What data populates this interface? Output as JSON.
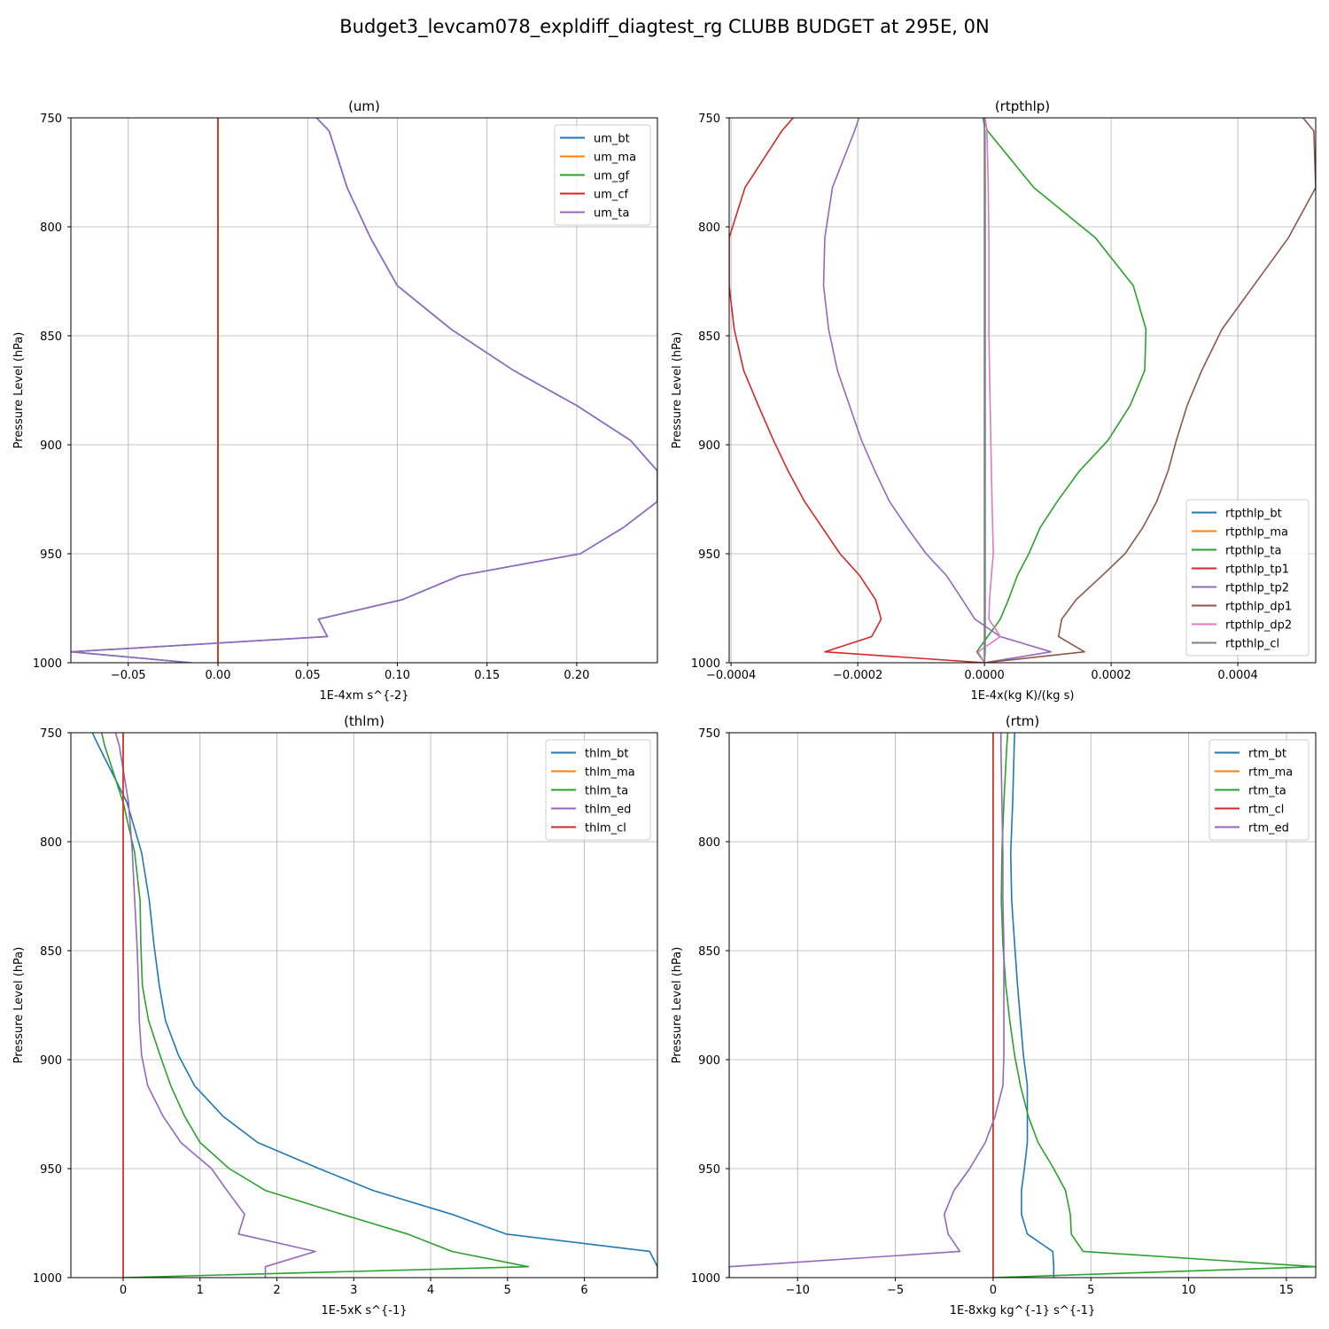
{
  "figure": {
    "suptitle": "Budget3_levcam078_expldiff_diagtest_rg CLUBB BUDGET at 295E, 0N"
  },
  "colors": {
    "c0": "#1f77b4",
    "c1": "#ff7f0e",
    "c2": "#2ca02c",
    "c3": "#d62728",
    "c4": "#9467bd",
    "c5": "#8c564b",
    "c6": "#e377c2",
    "c7": "#7f7f7f",
    "grid": "#b0b0b0"
  },
  "chart_data": [
    {
      "id": "um",
      "type": "line",
      "title": "(um)",
      "xlabel": "1E-4xm s^{-2}",
      "ylabel": "Pressure Level (hPa)",
      "xlim": [
        -0.082,
        0.245
      ],
      "ylim": [
        1000,
        750
      ],
      "xticks": [
        -0.05,
        0.0,
        0.05,
        0.1,
        0.15,
        0.2
      ],
      "xtick_labels": [
        "−0.05",
        "0.00",
        "0.05",
        "0.10",
        "0.15",
        "0.20"
      ],
      "yticks": [
        750,
        800,
        850,
        900,
        950,
        1000
      ],
      "ytick_labels": [
        "750",
        "800",
        "850",
        "900",
        "950",
        "1000"
      ],
      "grid": true,
      "legend": "top-right",
      "levels": [
        750,
        756,
        782,
        805,
        827,
        847,
        866,
        882,
        898,
        912,
        926,
        938,
        950,
        960,
        971,
        980,
        988,
        995,
        1000
      ],
      "series": [
        {
          "name": "um_bt",
          "color": "c0",
          "values": [
            0.055,
            0.062,
            0.072,
            0.085,
            0.1,
            0.13,
            0.165,
            0.2,
            0.23,
            0.245,
            0.245,
            0.226,
            0.202,
            0.135,
            0.103,
            0.056,
            0.061,
            -0.082,
            -0.015
          ]
        },
        {
          "name": "um_ma",
          "color": "c1",
          "values": [
            0,
            0,
            0,
            0,
            0,
            0,
            0,
            0,
            0,
            0,
            0,
            0,
            0,
            0,
            0,
            0,
            0,
            0,
            0
          ]
        },
        {
          "name": "um_gf",
          "color": "c2",
          "values": [
            0,
            0,
            0,
            0,
            0,
            0,
            0,
            0,
            0,
            0,
            0,
            0,
            0,
            0,
            0,
            0,
            0,
            0,
            0
          ]
        },
        {
          "name": "um_cf",
          "color": "c3",
          "values": [
            0,
            0,
            0,
            0,
            0,
            0,
            0,
            0,
            0,
            0,
            0,
            0,
            0,
            0,
            0,
            0,
            0,
            0,
            0
          ]
        },
        {
          "name": "um_ta",
          "color": "c4",
          "values": [
            0.055,
            0.062,
            0.072,
            0.085,
            0.1,
            0.13,
            0.165,
            0.2,
            0.23,
            0.245,
            0.245,
            0.226,
            0.202,
            0.135,
            0.103,
            0.056,
            0.061,
            -0.082,
            -0.015
          ]
        }
      ]
    },
    {
      "id": "rtpthlp",
      "type": "line",
      "title": "(rtpthlp)",
      "xlabel": "1E-4x(kg K)/(kg s)",
      "ylabel": "Pressure Level (hPa)",
      "xlim": [
        -0.000403,
        0.000523
      ],
      "ylim": [
        1000,
        750
      ],
      "xticks": [
        -0.0004,
        -0.0002,
        0.0,
        0.0002,
        0.0004
      ],
      "xtick_labels": [
        "−0.0004",
        "−0.0002",
        "0.0000",
        "0.0002",
        "0.0004"
      ],
      "yticks": [
        750,
        800,
        850,
        900,
        950,
        1000
      ],
      "ytick_labels": [
        "750",
        "800",
        "850",
        "900",
        "950",
        "1000"
      ],
      "grid": true,
      "legend": "bottom-right",
      "levels": [
        750,
        756,
        782,
        805,
        827,
        847,
        866,
        882,
        898,
        912,
        926,
        938,
        950,
        960,
        971,
        980,
        988,
        995,
        1000
      ],
      "series": [
        {
          "name": "rtpthlp_bt",
          "color": "c0",
          "values": [
            -2e-06,
            8e-07,
            1e-06,
            1e-06,
            1e-06,
            1e-06,
            1e-06,
            1e-06,
            1e-06,
            1e-06,
            1e-06,
            1e-06,
            1e-06,
            1e-06,
            1e-06,
            1e-06,
            1e-06,
            1e-06,
            0.0
          ]
        },
        {
          "name": "rtpthlp_ma",
          "color": "c1",
          "values": [
            0,
            0,
            0,
            0,
            0,
            0,
            0,
            0,
            0,
            0,
            0,
            0,
            0,
            0,
            0,
            0,
            0,
            0,
            0
          ]
        },
        {
          "name": "rtpthlp_ta",
          "color": "c2",
          "values": [
            -2e-06,
            5e-06,
            7.8e-05,
            0.000175,
            0.000235,
            0.000255,
            0.000253,
            0.00023,
            0.000195,
            0.00015,
            0.000115,
            8.8e-05,
            7e-05,
            5.2e-05,
            3.8e-05,
            2.5e-05,
            5e-06,
            -1.2e-05,
            0.0
          ]
        },
        {
          "name": "rtpthlp_tp1",
          "color": "c3",
          "values": [
            -0.000302,
            -0.00032,
            -0.000378,
            -0.000403,
            -0.000403,
            -0.000395,
            -0.00038,
            -0.000357,
            -0.000333,
            -0.00031,
            -0.000284,
            -0.000256,
            -0.000228,
            -0.000197,
            -0.000172,
            -0.000163,
            -0.000178,
            -0.000252,
            0.0
          ]
        },
        {
          "name": "rtpthlp_tp2",
          "color": "c4",
          "values": [
            -0.000198,
            -0.000205,
            -0.00024,
            -0.000252,
            -0.000254,
            -0.000246,
            -0.000232,
            -0.000213,
            -0.000194,
            -0.000173,
            -0.00015,
            -0.000122,
            -9.2e-05,
            -6e-05,
            -3.5e-05,
            -1.5e-05,
            2.5e-05,
            0.000105,
            0.0
          ]
        },
        {
          "name": "rtpthlp_dp1",
          "color": "c5",
          "values": [
            0.000503,
            0.00052,
            0.000523,
            0.00048,
            0.000425,
            0.000375,
            0.000343,
            0.00032,
            0.000303,
            0.00029,
            0.000272,
            0.00025,
            0.000222,
            0.000186,
            0.000145,
            0.000122,
            0.000117,
            0.000158,
            0.0
          ]
        },
        {
          "name": "rtpthlp_dp2",
          "color": "c6",
          "values": [
            1e-06,
            4e-06,
            6e-06,
            7e-06,
            7e-06,
            7e-06,
            8e-06,
            9e-06,
            1e-05,
            1.1e-05,
            1.2e-05,
            1.3e-05,
            1.4e-05,
            1.1e-05,
            8e-06,
            7e-06,
            2.5e-05,
            -1e-05,
            0.0
          ]
        },
        {
          "name": "rtpthlp_cl",
          "color": "c7",
          "values": [
            0,
            0,
            0,
            0,
            0,
            0,
            0,
            0,
            0,
            0,
            0,
            0,
            0,
            0,
            0,
            0,
            0,
            0,
            0
          ]
        }
      ]
    },
    {
      "id": "thlm",
      "type": "line",
      "title": "(thlm)",
      "xlabel": "1E-5xK s^{-1}",
      "ylabel": "Pressure Level (hPa)",
      "xlim": [
        -0.68,
        6.95
      ],
      "ylim": [
        1000,
        750
      ],
      "xticks": [
        0,
        1,
        2,
        3,
        4,
        5,
        6
      ],
      "xtick_labels": [
        "0",
        "1",
        "2",
        "3",
        "4",
        "5",
        "6"
      ],
      "yticks": [
        750,
        800,
        850,
        900,
        950,
        1000
      ],
      "ytick_labels": [
        "750",
        "800",
        "850",
        "900",
        "950",
        "1000"
      ],
      "grid": true,
      "legend": "top-right",
      "levels": [
        750,
        756,
        782,
        805,
        827,
        847,
        866,
        882,
        898,
        912,
        926,
        938,
        950,
        960,
        971,
        980,
        988,
        995,
        1000
      ],
      "series": [
        {
          "name": "thlm_bt",
          "color": "c0",
          "values": [
            -0.4,
            -0.32,
            0.05,
            0.24,
            0.34,
            0.4,
            0.47,
            0.55,
            0.72,
            0.93,
            1.3,
            1.75,
            2.55,
            3.25,
            4.28,
            4.98,
            6.85,
            6.95,
            6.95
          ]
        },
        {
          "name": "thlm_ma",
          "color": "c1",
          "values": [
            0,
            0,
            0,
            0,
            0,
            0,
            0,
            0,
            0,
            0,
            0,
            0,
            0,
            0,
            0,
            0,
            0,
            0,
            0
          ]
        },
        {
          "name": "thlm_ta",
          "color": "c2",
          "values": [
            -0.28,
            -0.24,
            0.0,
            0.15,
            0.22,
            0.23,
            0.25,
            0.33,
            0.48,
            0.62,
            0.8,
            1.0,
            1.38,
            1.85,
            2.85,
            3.7,
            4.28,
            5.27,
            0.0
          ]
        },
        {
          "name": "thlm_ed",
          "color": "c4",
          "values": [
            -0.1,
            -0.05,
            0.07,
            0.12,
            0.15,
            0.18,
            0.2,
            0.21,
            0.24,
            0.32,
            0.52,
            0.75,
            1.15,
            1.35,
            1.58,
            1.5,
            2.5,
            1.85,
            1.85
          ]
        },
        {
          "name": "thlm_cl",
          "color": "c3",
          "values": [
            0,
            0,
            0,
            0,
            0,
            0,
            0,
            0,
            0,
            0,
            0,
            0,
            0,
            0,
            0,
            0,
            0,
            0,
            0
          ]
        }
      ]
    },
    {
      "id": "rtm",
      "type": "line",
      "title": "(rtm)",
      "xlabel": "1E-8xkg kg^{-1} s^{-1}",
      "ylabel": "Pressure Level (hPa)",
      "xlim": [
        -13.5,
        16.5
      ],
      "ylim": [
        1000,
        750
      ],
      "xticks": [
        -10,
        -5,
        0,
        5,
        10,
        15
      ],
      "xtick_labels": [
        "−10",
        "−5",
        "0",
        "5",
        "10",
        "15"
      ],
      "yticks": [
        750,
        800,
        850,
        900,
        950,
        1000
      ],
      "ytick_labels": [
        "750",
        "800",
        "850",
        "900",
        "950",
        "1000"
      ],
      "grid": true,
      "legend": "top-right",
      "levels": [
        750,
        756,
        782,
        805,
        827,
        847,
        866,
        882,
        898,
        912,
        926,
        938,
        950,
        960,
        971,
        980,
        988,
        995,
        1000
      ],
      "series": [
        {
          "name": "rtm_bt",
          "color": "c0",
          "values": [
            1.1,
            1.08,
            1.0,
            0.9,
            0.95,
            1.1,
            1.25,
            1.4,
            1.55,
            1.75,
            1.75,
            1.75,
            1.6,
            1.45,
            1.45,
            1.75,
            3.05,
            3.1,
            3.1
          ]
        },
        {
          "name": "rtm_ma",
          "color": "c1",
          "values": [
            0,
            0,
            0,
            0,
            0,
            0,
            0,
            0,
            0,
            0,
            0,
            0,
            0,
            0,
            0,
            0,
            0,
            0,
            0
          ]
        },
        {
          "name": "rtm_ta",
          "color": "c2",
          "values": [
            0.75,
            0.7,
            0.55,
            0.45,
            0.42,
            0.5,
            0.65,
            0.85,
            1.1,
            1.4,
            1.8,
            2.3,
            3.1,
            3.7,
            3.95,
            4.0,
            4.6,
            16.5,
            0.0
          ]
        },
        {
          "name": "rtm_cl",
          "color": "c3",
          "values": [
            0,
            0,
            0,
            0,
            0,
            0,
            0,
            0,
            0,
            0,
            0,
            0,
            0,
            0,
            0,
            0,
            0,
            0,
            0
          ]
        },
        {
          "name": "rtm_ed",
          "color": "c4",
          "values": [
            0.4,
            0.4,
            0.45,
            0.5,
            0.5,
            0.55,
            0.55,
            0.55,
            0.55,
            0.5,
            0.1,
            -0.4,
            -1.2,
            -2.0,
            -2.5,
            -2.3,
            -1.7,
            -13.5,
            -13.5
          ]
        }
      ],
      "legend_order": [
        "rtm_bt",
        "rtm_ma",
        "rtm_ta",
        "rtm_cl",
        "rtm_ed"
      ]
    }
  ]
}
